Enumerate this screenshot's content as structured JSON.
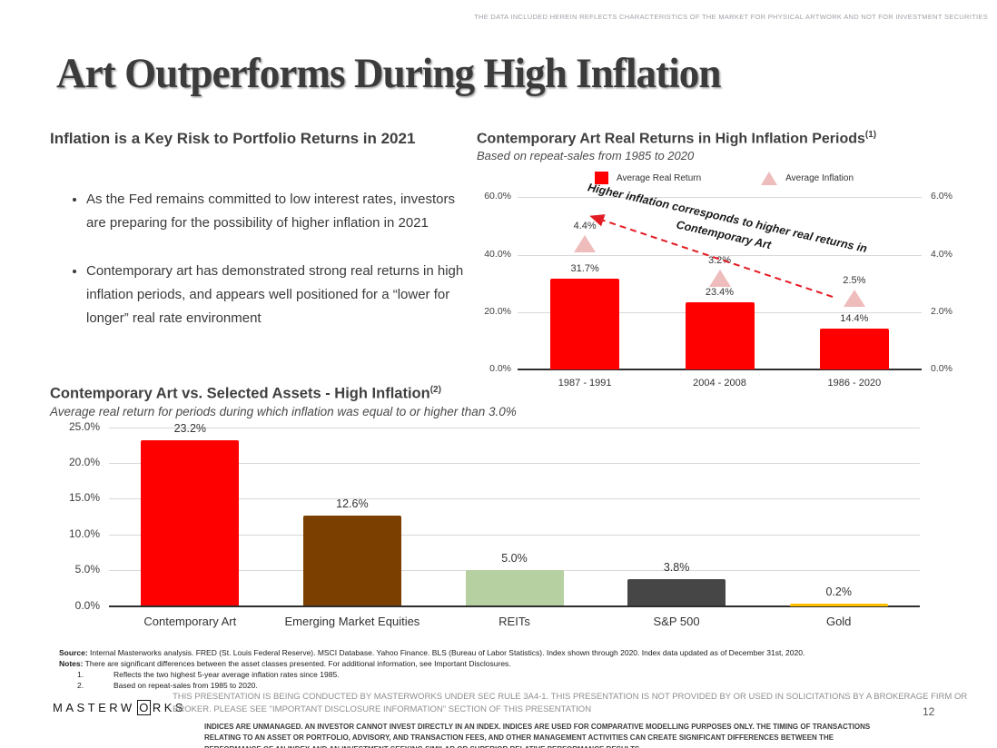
{
  "page": {
    "top_disclaimer": "THE DATA INCLUDED HEREIN REFLECTS CHARACTERISTICS OF THE MARKET FOR PHYSICAL ARTWORK AND NOT FOR INVESTMENT SECURITIES",
    "title": "Art Outperforms During High Inflation",
    "page_number": "12"
  },
  "left_section": {
    "heading": "Inflation is a Key Risk to Portfolio Returns in 2021",
    "bullets": [
      "As the Fed remains committed to low interest rates, investors are preparing for the possibility of higher inflation in 2021",
      "Contemporary art has demonstrated strong real returns in high inflation periods, and appears well positioned for a “lower for longer” real rate environment"
    ]
  },
  "chart_data": [
    {
      "type": "bar",
      "title": "Contemporary Art Real Returns in High Inflation Periods",
      "title_superscript": "(1)",
      "subtitle": "Based on repeat-sales from 1985 to 2020",
      "categories": [
        "1987 - 1991",
        "2004 - 2008",
        "1986 - 2020"
      ],
      "series": [
        {
          "name": "Average Real Return",
          "marker": "bar",
          "axis": "left",
          "color": "#FE0000",
          "values": [
            31.7,
            23.4,
            14.4
          ],
          "labels": [
            "31.7%",
            "23.4%",
            "14.4%"
          ]
        },
        {
          "name": "Average Inflation",
          "marker": "triangle",
          "axis": "right",
          "color": "#EFBCBC",
          "values": [
            4.4,
            3.2,
            2.5
          ],
          "labels": [
            "4.4%",
            "3.2%",
            "2.5%"
          ]
        }
      ],
      "left_axis": {
        "max": 60,
        "ticks": [
          60,
          40,
          20,
          0
        ],
        "tick_labels": [
          "60.0%",
          "40.0%",
          "20.0%",
          "0.0%"
        ]
      },
      "right_axis": {
        "max": 6,
        "ticks": [
          6,
          4,
          2,
          0
        ],
        "tick_labels": [
          "6.0%",
          "4.0%",
          "2.0%",
          "0.0%"
        ]
      },
      "annotation": "Higher inflation corresponds to higher real returns in Contemporary Art",
      "annotation_arrow_color": "#E31B23",
      "legend_position": "top",
      "grid": true
    },
    {
      "type": "bar",
      "title": "Contemporary Art vs. Selected Assets - High Inflation",
      "title_superscript": "(2)",
      "subtitle": "Average real return for periods during which inflation was equal to or higher than 3.0%",
      "categories": [
        "Contemporary Art",
        "Emerging Market Equities",
        "REITs",
        "S&P 500",
        "Gold"
      ],
      "values": [
        23.2,
        12.6,
        5.0,
        3.8,
        0.2
      ],
      "labels": [
        "23.2%",
        "12.6%",
        "5.0%",
        "3.8%",
        "0.2%"
      ],
      "colors": [
        "#FE0000",
        "#7B3F00",
        "#B6D0A2",
        "#464646",
        "#FCBE00"
      ],
      "ylim": [
        0,
        25
      ],
      "y_ticks": [
        25,
        20,
        15,
        10,
        5,
        0
      ],
      "y_tick_labels": [
        "25.0%",
        "20.0%",
        "15.0%",
        "10.0%",
        "5.0%",
        "0.0%"
      ],
      "grid": true,
      "legend_position": "none"
    }
  ],
  "footer": {
    "source_label": "Source:",
    "source_text": " Internal Masterworks analysis. FRED (St. Louis Federal Reserve). MSCI Database. Yahoo Finance. BLS (Bureau of Labor Statistics). Index shown through 2020. Index data updated as of December 31st, 2020.",
    "notes_label": "Notes:",
    "notes_text": " There are significant differences between the asset classes presented. For additional information, see Important Disclosures.",
    "footnotes": [
      {
        "num": "1.",
        "text": "Reflects the two highest 5-year average inflation rates since 1985."
      },
      {
        "num": "2.",
        "text": "Based on repeat-sales from 1985 to 2020."
      }
    ],
    "logo": {
      "part1": "MASTERW",
      "part2": "O",
      "part3": "RKS"
    },
    "disclaimer1": "THIS PRESENTATION IS BEING CONDUCTED BY MASTERWORKS UNDER SEC RULE 3A4-1. THIS PRESENTATION IS NOT PROVIDED BY OR USED IN SOLICITATIONS BY A BROKERAGE FIRM OR BROKER. PLEASE SEE \"IMPORTANT DISCLOSURE INFORMATION\" SECTION OF THIS PRESENTATION",
    "disclaimer2": "INDICES ARE UNMANAGED. AN INVESTOR CANNOT INVEST DIRECTLY IN AN INDEX. INDICES ARE USED FOR COMPARATIVE MODELLING PURPOSES ONLY. THE TIMING OF TRANSACTIONS RELATING TO AN ASSET OR PORTFOLIO, ADVISORY, AND TRANSACTION FEES, AND OTHER MANAGEMENT ACTIVITIES CAN CREATE SIGNIFICANT DIFFERENCES BETWEEN THE PERFORMANCE OF AN INDEX AND AN INVESTMENT SEEKING SIMILAR OR SUPERIOR RELATIVE PERFORMANCE RESULTS"
  }
}
